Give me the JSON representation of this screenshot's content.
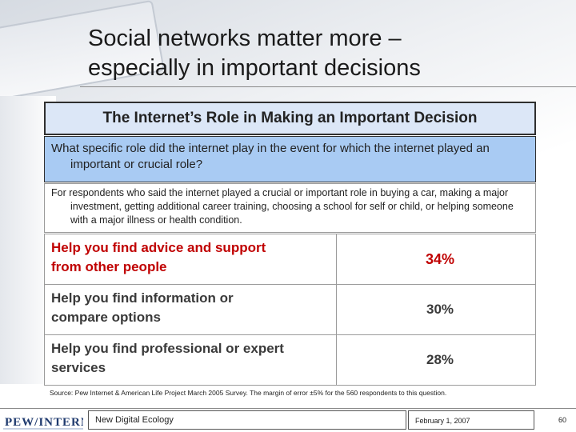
{
  "slide": {
    "title_line1": "Social networks matter more –",
    "title_line2": "especially in important decisions"
  },
  "box": {
    "title": "The Internet’s Role in Making an Important Decision",
    "question": "What specific role did the internet play in the event for which the internet played an important or crucial role?",
    "respondents": "For respondents who said the internet played a crucial or important role in buying a car, making a major investment, getting additional career training, choosing a school for self or child, or helping someone with a major illness or health condition."
  },
  "answers": [
    {
      "label_line1": "Help you find advice and support",
      "label_line2": "from other people",
      "value": "34%"
    },
    {
      "label_line1": "Help you find information or",
      "label_line2": "compare options",
      "value": "30%"
    },
    {
      "label_line1": "Help you find professional or expert",
      "label_line2": "services",
      "value": "28%"
    }
  ],
  "source": "Source: Pew Internet & American Life Project March 2005 Survey. The margin of error ±5% for the 560 respondents to this question.",
  "footer": {
    "logo_text": "PEW/INTERNET",
    "presentation": "New Digital Ecology",
    "date": "February 1, 2007",
    "page": "60"
  },
  "colors": {
    "highlight": "#c00000",
    "question_bg": "#a9cbf3",
    "title_bg": "#dce7f7"
  }
}
